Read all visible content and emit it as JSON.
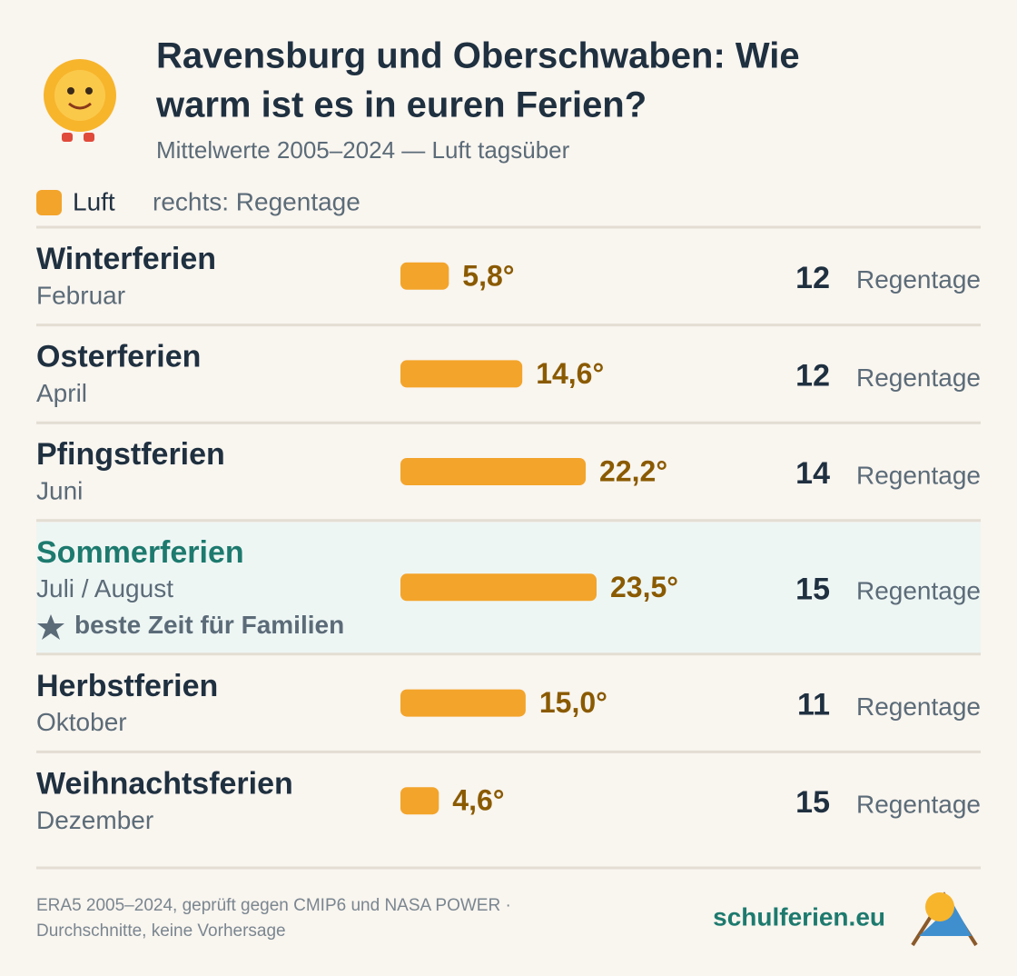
{
  "chart_data": {
    "type": "bar",
    "title_lines": [
      "Ravensburg und Oberschwaben: Wie",
      "warm ist es in euren Ferien?"
    ],
    "subtitle": "Mittelwerte 2005–2024 — Luft tagsüber",
    "legend": {
      "series": "Luft",
      "note": "rechts: Regentage"
    },
    "color": "#f3a42a",
    "categories": [
      "Winterferien",
      "Osterferien",
      "Pfingstferien",
      "Sommerferien",
      "Herbstferien",
      "Weihnachtsferien"
    ],
    "months": [
      "Februar",
      "April",
      "Juni",
      "Juli / August",
      "Oktober",
      "Dezember"
    ],
    "values": [
      5.8,
      14.6,
      22.2,
      23.5,
      15.0,
      4.6
    ],
    "value_labels": [
      "5,8°",
      "14,6°",
      "22,2°",
      "23,5°",
      "15,0°",
      "4,6°"
    ],
    "rain_days": [
      12,
      12,
      14,
      15,
      11,
      15
    ],
    "rain_unit": "Regentage",
    "highlight": "Sommerferien",
    "highlight_note": "beste Zeit für Familien",
    "footer_lines": [
      "ERA5 2005–2024, geprüft gegen CMIP6 und NASA POWER ·",
      "Durchschnitte, keine Vorhersage"
    ],
    "brand": "schulferien.eu"
  }
}
